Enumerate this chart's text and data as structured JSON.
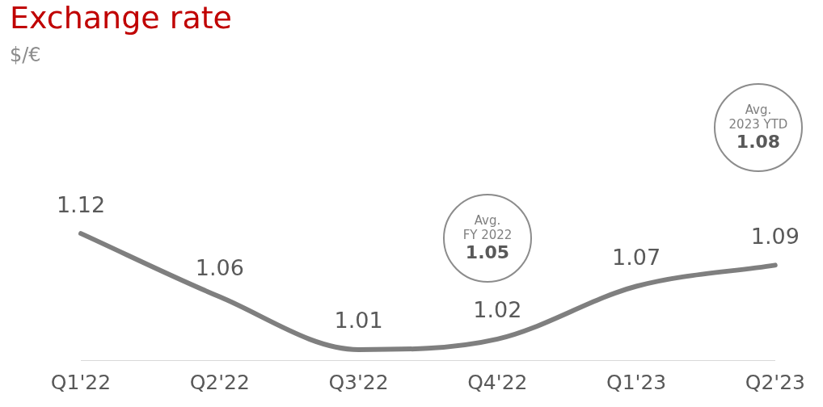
{
  "chart_data": {
    "type": "line",
    "title": "Exchange rate",
    "subtitle": "$/€",
    "categories": [
      "Q1'22",
      "Q2'22",
      "Q3'22",
      "Q4'22",
      "Q1'23",
      "Q2'23"
    ],
    "series": [
      {
        "color": "#7f7f7f",
        "values": [
          1.12,
          1.06,
          1.01,
          1.02,
          1.07,
          1.09
        ]
      }
    ],
    "tick_labels": "x",
    "grid": false,
    "legend": false,
    "marker": "none",
    "line_style": "solid",
    "data_labels": true,
    "annotations": [
      "Avg.\nFY 2022\n1.05",
      "Avg.\n2023 YTD\n1.08"
    ]
  }
}
